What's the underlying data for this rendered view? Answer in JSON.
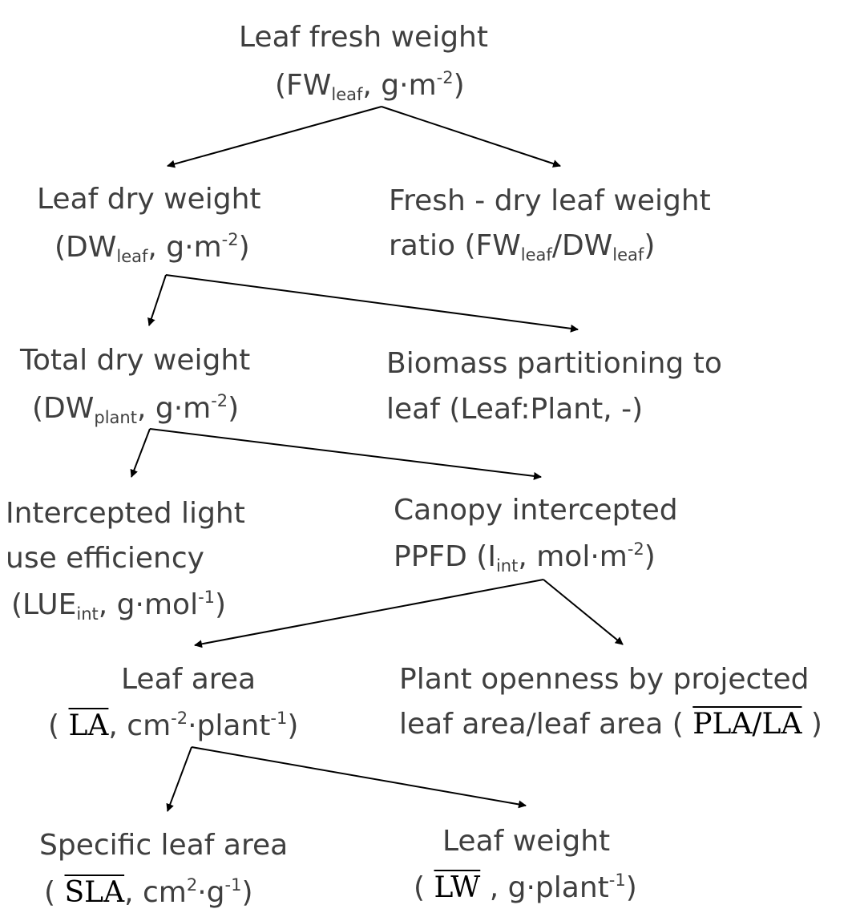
{
  "colors": {
    "text": "#3f3f3f",
    "symbol": "#000000",
    "arrow": "#000000"
  },
  "nodes": {
    "fw_leaf": {
      "title": "Leaf fresh weight",
      "open": "(FW",
      "sub": "leaf",
      "unit": ", g·m",
      "sup": "-2",
      "close": ")"
    },
    "dw_leaf": {
      "title": "Leaf dry weight",
      "open": "(DW",
      "sub": "leaf",
      "unit": ", g·m",
      "sup": "-2",
      "close": ")"
    },
    "fw_dw_ratio": {
      "line1": "Fresh - dry leaf weight",
      "prefix": "ratio (FW",
      "sub1": "leaf",
      "mid": "/DW",
      "sub2": "leaf",
      "close": ")"
    },
    "dw_plant": {
      "title": "Total dry weight",
      "open": "(DW",
      "sub": "plant",
      "unit": ", g·m",
      "sup": "-2",
      "close": ")"
    },
    "partitioning": {
      "line1": "Biomass partitioning to",
      "line2": "leaf (Leaf:Plant, -)"
    },
    "lue": {
      "line1": "Intercepted light",
      "line2": "use efficiency",
      "open": "(LUE",
      "sub": "int",
      "unit": ", g·mol",
      "sup": "-1",
      "close": ")"
    },
    "ppfd": {
      "title": "Canopy intercepted",
      "open": "PPFD (I",
      "sub": "int",
      "unit": ", mol·m",
      "sup": "-2",
      "close": ")"
    },
    "leaf_area": {
      "title": "Leaf area",
      "open": "( ",
      "symbol": "LA",
      "unit": ", cm",
      "sup1": "-2",
      "mid": "·plant",
      "sup2": "-1",
      "close": ")"
    },
    "openness": {
      "line1": "Plant openness by projected",
      "prefix": "leaf area/leaf area ( ",
      "symbol": "PLA/LA",
      "close": " )"
    },
    "sla": {
      "title": "Specific leaf area",
      "open": "( ",
      "symbol": "SLA",
      "unit": ", cm",
      "sup1": "2",
      "mid": "·g",
      "sup2": "-1",
      "close": ")"
    },
    "leaf_weight": {
      "title": "Leaf weight",
      "open": "( ",
      "symbol": "LW",
      "unit": " , g·plant",
      "sup": "-1",
      "close": ")"
    }
  }
}
